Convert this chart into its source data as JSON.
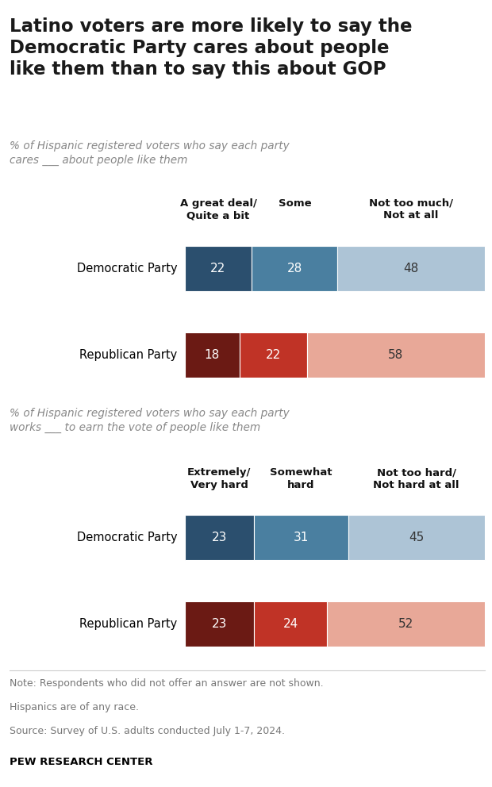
{
  "title": "Latino voters are more likely to say the\nDemocratic Party cares about people\nlike them than to say this about GOP",
  "subtitle1": "% of Hispanic registered voters who say each party\ncares ___ about people like them",
  "subtitle2": "% of Hispanic registered voters who say each party\nworks ___ to earn the vote of people like them",
  "note_line1": "Note: Respondents who did not offer an answer are not shown.",
  "note_line2": "Hispanics are of any race.",
  "note_line3": "Source: Survey of U.S. adults conducted July 1-7, 2024.",
  "source": "PEW RESEARCH CENTER",
  "chart1": {
    "headers": [
      "A great deal/\nQuite a bit",
      "Some",
      "Not too much/\nNot at all"
    ],
    "rows": [
      {
        "label": "Democratic Party",
        "values": [
          22,
          28,
          48
        ],
        "colors": [
          "#2b4f6e",
          "#4a7fa0",
          "#adc4d6"
        ]
      },
      {
        "label": "Republican Party",
        "values": [
          18,
          22,
          58
        ],
        "colors": [
          "#6b1a14",
          "#c03326",
          "#e8a898"
        ]
      }
    ]
  },
  "chart2": {
    "headers": [
      "Extremely/\nVery hard",
      "Somewhat\nhard",
      "Not too hard/\nNot hard at all"
    ],
    "rows": [
      {
        "label": "Democratic Party",
        "values": [
          23,
          31,
          45
        ],
        "colors": [
          "#2b4f6e",
          "#4a7fa0",
          "#adc4d6"
        ]
      },
      {
        "label": "Republican Party",
        "values": [
          23,
          24,
          52
        ],
        "colors": [
          "#6b1a14",
          "#c03326",
          "#e8a898"
        ]
      }
    ]
  },
  "title_color": "#1a1a1a",
  "subtitle_color": "#888888",
  "header_color": "#111111",
  "note_color": "#777777"
}
